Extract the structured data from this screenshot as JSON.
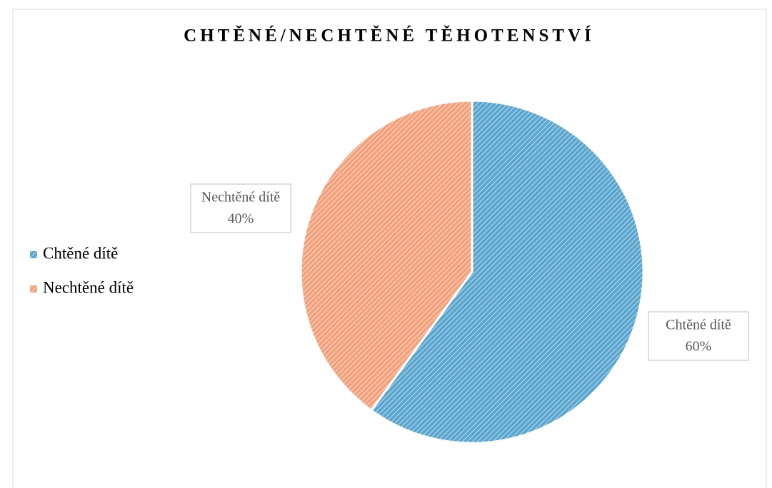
{
  "chart_data": {
    "type": "pie",
    "title": "CHTĚNÉ/NECHTĚNÉ TĚHOTENSTVÍ",
    "categories": [
      "Chtěné dítě",
      "Nechtěné dítě"
    ],
    "values": [
      60,
      40
    ],
    "value_labels": [
      "60%",
      "40%"
    ],
    "colors": [
      "#5aa6cf",
      "#f2a27c"
    ],
    "legend": "left"
  }
}
